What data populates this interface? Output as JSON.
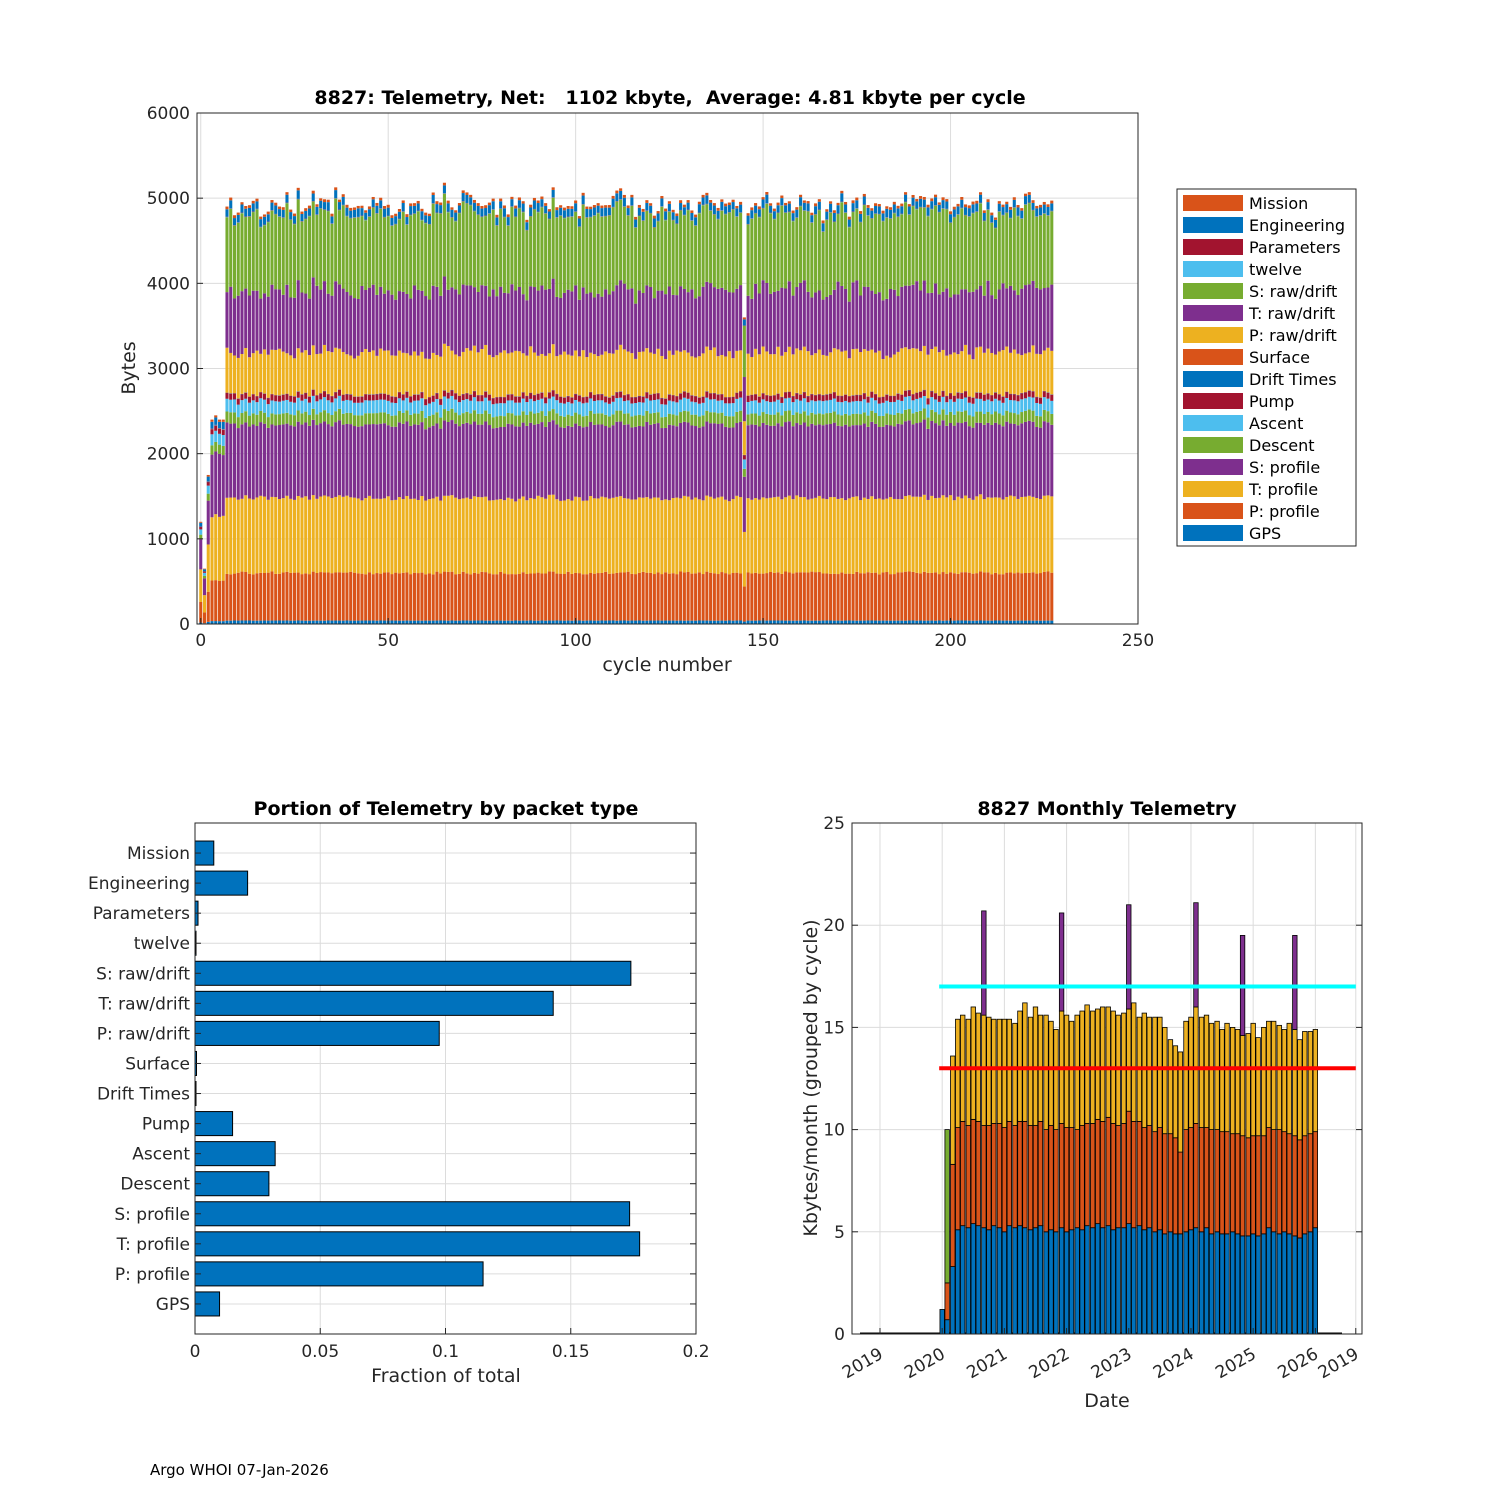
{
  "colors": {
    "blue": "#0072BD",
    "orange": "#D95319",
    "yellow": "#EDB120",
    "purple": "#7E2F8E",
    "green": "#77AC30",
    "lightblue": "#4DBEEE",
    "darkred": "#A2142F",
    "cyan": "#00FFFF",
    "red": "#FF0000"
  },
  "footer": "Argo WHOI 07-Jan-2026",
  "chart_data": [
    {
      "id": "telemetry-by-cycle",
      "type": "bar",
      "stacked": true,
      "title": "8827: Telemetry, Net:   1102 kbyte,  Average: 4.81 kbyte per cycle",
      "xlabel": "cycle number",
      "ylabel": "Bytes",
      "xlim": [
        -1,
        250
      ],
      "ylim": [
        0,
        6000
      ],
      "xticks": [
        "0",
        "50",
        "100",
        "150",
        "200",
        "250"
      ],
      "yticks": [
        "0",
        "1000",
        "2000",
        "3000",
        "4000",
        "5000",
        "6000"
      ],
      "grid": true,
      "legend_position": "right",
      "series_order_bottom_to_top": [
        "GPS",
        "P: profile",
        "T: profile",
        "S: profile",
        "Descent",
        "Ascent",
        "Pump",
        "Drift Times",
        "Surface",
        "P: raw/drift",
        "T: raw/drift",
        "S: raw/drift",
        "twelve",
        "Parameters",
        "Engineering",
        "Mission"
      ],
      "legend": [
        {
          "label": "Mission",
          "color": "#D95319"
        },
        {
          "label": "Engineering",
          "color": "#0072BD"
        },
        {
          "label": "Parameters",
          "color": "#A2142F"
        },
        {
          "label": "twelve",
          "color": "#4DBEEE"
        },
        {
          "label": "S: raw/drift",
          "color": "#77AC30"
        },
        {
          "label": "T: raw/drift",
          "color": "#7E2F8E"
        },
        {
          "label": "P: raw/drift",
          "color": "#EDB120"
        },
        {
          "label": "Surface",
          "color": "#D95319"
        },
        {
          "label": "Drift Times",
          "color": "#0072BD"
        },
        {
          "label": "Pump",
          "color": "#A2142F"
        },
        {
          "label": "Ascent",
          "color": "#4DBEEE"
        },
        {
          "label": "Descent",
          "color": "#77AC30"
        },
        {
          "label": "S: profile",
          "color": "#7E2F8E"
        },
        {
          "label": "T: profile",
          "color": "#EDB120"
        },
        {
          "label": "P: profile",
          "color": "#D95319"
        },
        {
          "label": "GPS",
          "color": "#0072BD"
        }
      ],
      "cycles": {
        "first": 0,
        "last": 227,
        "typical_total_bytes": 4950,
        "max_total_bytes": 5400
      },
      "typical_stack_bytes": {
        "GPS": 40,
        "P: profile": 560,
        "T: profile": 880,
        "S: profile": 860,
        "Descent": 130,
        "Ascent": 150,
        "Pump": 70,
        "Drift Times": 2,
        "Surface": 3,
        "P: raw/drift": 490,
        "T: raw/drift": 720,
        "S: raw/drift": 880,
        "twelve": 2,
        "Parameters": 4,
        "Engineering": 90,
        "Mission": 30
      },
      "early_cycle_totals": [
        {
          "cycle": 0,
          "total": 1200
        },
        {
          "cycle": 1,
          "total": 650
        },
        {
          "cycle": 2,
          "total": 1750
        },
        {
          "cycle": 3,
          "total": 2400
        },
        {
          "cycle": 4,
          "total": 2450
        },
        {
          "cycle": 5,
          "total": 2400
        },
        {
          "cycle": 6,
          "total": 2400
        }
      ],
      "anomaly": {
        "cycle": 145,
        "total": 3600
      }
    },
    {
      "id": "portion-by-packet-type",
      "type": "bar",
      "orientation": "horizontal",
      "title": "Portion of Telemetry by packet type",
      "xlabel": "Fraction of total",
      "ylabel": "",
      "xlim": [
        0,
        0.2
      ],
      "xticks": [
        "0",
        "0.05",
        "0.1",
        "0.15",
        "0.2"
      ],
      "grid": true,
      "categories": [
        "Mission",
        "Engineering",
        "Parameters",
        "twelve",
        "S: raw/drift",
        "T: raw/drift",
        "P: raw/drift",
        "Surface",
        "Drift Times",
        "Pump",
        "Ascent",
        "Descent",
        "S: profile",
        "T: profile",
        "P: profile",
        "GPS"
      ],
      "values": [
        0.0075,
        0.021,
        0.0012,
        0.0004,
        0.174,
        0.143,
        0.0975,
        0.0006,
        0.0003,
        0.015,
        0.032,
        0.0295,
        0.1735,
        0.1775,
        0.115,
        0.0098
      ],
      "bar_color": "#0072BD"
    },
    {
      "id": "monthly-telemetry",
      "type": "bar",
      "stacked": true,
      "title": "8827 Monthly Telemetry",
      "xlabel": "Date",
      "ylabel": "Kbytes/month (grouped by cycle)",
      "ylim": [
        0,
        25
      ],
      "yticks": [
        "0",
        "5",
        "10",
        "15",
        "20",
        "25"
      ],
      "xticks": [
        "2019",
        "2020",
        "2021",
        "2022",
        "2023",
        "2024",
        "2025",
        "2026",
        "2019"
      ],
      "xlim": [
        2018.55,
        2026.75
      ],
      "grid": true,
      "layers_bottom_to_top": [
        "cycle 1 (blue)",
        "cycle 2 (orange)",
        "cycle 3 (yellow)",
        "extra (green/purple)"
      ],
      "months": [
        {
          "t": 2020.0,
          "layers": [
            1.2,
            0,
            0,
            0
          ]
        },
        {
          "t": 2020.08,
          "layers": [
            0.7,
            1.8,
            0,
            7.5
          ]
        },
        {
          "t": 2020.17,
          "layers": [
            3.3,
            5.0,
            5.3,
            0
          ]
        },
        {
          "t": 2020.25,
          "layers": [
            5.1,
            5.0,
            5.3,
            0
          ]
        },
        {
          "t": 2020.33,
          "layers": [
            5.3,
            5.1,
            5.2,
            0
          ]
        },
        {
          "t": 2020.42,
          "layers": [
            5.2,
            5.0,
            5.2,
            0
          ]
        },
        {
          "t": 2020.5,
          "layers": [
            5.4,
            5.1,
            5.5,
            0
          ]
        },
        {
          "t": 2020.58,
          "layers": [
            5.3,
            5.1,
            5.3,
            0
          ]
        },
        {
          "t": 2020.67,
          "layers": [
            5.2,
            5.0,
            5.4,
            5.1
          ]
        },
        {
          "t": 2020.75,
          "layers": [
            5.1,
            5.1,
            5.3,
            0
          ]
        },
        {
          "t": 2020.83,
          "layers": [
            5.3,
            5.0,
            5.1,
            0
          ]
        },
        {
          "t": 2020.92,
          "layers": [
            5.2,
            5.1,
            5.1,
            0
          ]
        },
        {
          "t": 2021.0,
          "layers": [
            5.0,
            5.1,
            5.3,
            0
          ]
        },
        {
          "t": 2021.08,
          "layers": [
            5.3,
            5.1,
            5.0,
            0
          ]
        },
        {
          "t": 2021.17,
          "layers": [
            5.2,
            5.0,
            5.0,
            0
          ]
        },
        {
          "t": 2021.25,
          "layers": [
            5.3,
            5.1,
            5.4,
            0
          ]
        },
        {
          "t": 2021.33,
          "layers": [
            5.2,
            5.2,
            5.8,
            0
          ]
        },
        {
          "t": 2021.42,
          "layers": [
            5.1,
            5.1,
            5.3,
            0
          ]
        },
        {
          "t": 2021.5,
          "layers": [
            5.2,
            5.0,
            5.8,
            0
          ]
        },
        {
          "t": 2021.58,
          "layers": [
            5.3,
            5.1,
            5.2,
            0
          ]
        },
        {
          "t": 2021.67,
          "layers": [
            5.0,
            5.0,
            5.6,
            0
          ]
        },
        {
          "t": 2021.75,
          "layers": [
            5.1,
            5.1,
            5.1,
            0
          ]
        },
        {
          "t": 2021.83,
          "layers": [
            5.0,
            5.0,
            4.9,
            0
          ]
        },
        {
          "t": 2021.92,
          "layers": [
            5.2,
            5.1,
            5.5,
            4.8
          ]
        },
        {
          "t": 2022.0,
          "layers": [
            5.0,
            5.1,
            5.5,
            0
          ]
        },
        {
          "t": 2022.08,
          "layers": [
            5.1,
            5.0,
            5.2,
            0
          ]
        },
        {
          "t": 2022.17,
          "layers": [
            5.2,
            4.8,
            5.6,
            0
          ]
        },
        {
          "t": 2022.25,
          "layers": [
            5.1,
            5.1,
            5.6,
            0
          ]
        },
        {
          "t": 2022.33,
          "layers": [
            5.3,
            5.0,
            5.8,
            0
          ]
        },
        {
          "t": 2022.42,
          "layers": [
            5.2,
            5.1,
            5.5,
            0
          ]
        },
        {
          "t": 2022.5,
          "layers": [
            5.4,
            5.1,
            5.4,
            0
          ]
        },
        {
          "t": 2022.58,
          "layers": [
            5.2,
            5.2,
            5.6,
            0
          ]
        },
        {
          "t": 2022.67,
          "layers": [
            5.3,
            5.3,
            5.4,
            0
          ]
        },
        {
          "t": 2022.75,
          "layers": [
            5.1,
            5.2,
            5.5,
            0
          ]
        },
        {
          "t": 2022.83,
          "layers": [
            5.2,
            5.0,
            5.4,
            0
          ]
        },
        {
          "t": 2022.92,
          "layers": [
            5.2,
            5.1,
            5.4,
            0
          ]
        },
        {
          "t": 2023.0,
          "layers": [
            5.4,
            5.5,
            5.0,
            5.1
          ]
        },
        {
          "t": 2023.08,
          "layers": [
            5.2,
            5.2,
            5.8,
            0
          ]
        },
        {
          "t": 2023.17,
          "layers": [
            5.3,
            5.1,
            5.1,
            0
          ]
        },
        {
          "t": 2023.25,
          "layers": [
            5.1,
            5.0,
            5.6,
            0
          ]
        },
        {
          "t": 2023.33,
          "layers": [
            5.2,
            5.0,
            5.3,
            0
          ]
        },
        {
          "t": 2023.42,
          "layers": [
            5.0,
            4.9,
            5.6,
            0
          ]
        },
        {
          "t": 2023.5,
          "layers": [
            5.1,
            5.0,
            5.4,
            0
          ]
        },
        {
          "t": 2023.58,
          "layers": [
            4.9,
            4.9,
            5.2,
            0
          ]
        },
        {
          "t": 2023.67,
          "layers": [
            5.0,
            4.8,
            4.6,
            0
          ]
        },
        {
          "t": 2023.75,
          "layers": [
            4.9,
            4.7,
            4.5,
            0
          ]
        },
        {
          "t": 2023.83,
          "layers": [
            4.9,
            4.0,
            4.9,
            0
          ]
        },
        {
          "t": 2023.92,
          "layers": [
            5.0,
            5.0,
            5.3,
            0
          ]
        },
        {
          "t": 2024.0,
          "layers": [
            5.1,
            5.0,
            5.4,
            0
          ]
        },
        {
          "t": 2024.08,
          "layers": [
            5.2,
            5.1,
            5.7,
            5.1
          ]
        },
        {
          "t": 2024.17,
          "layers": [
            5.0,
            5.1,
            5.4,
            0
          ]
        },
        {
          "t": 2024.25,
          "layers": [
            5.2,
            4.9,
            5.5,
            0
          ]
        },
        {
          "t": 2024.33,
          "layers": [
            4.9,
            5.1,
            5.2,
            0
          ]
        },
        {
          "t": 2024.42,
          "layers": [
            5.0,
            5.0,
            5.3,
            0
          ]
        },
        {
          "t": 2024.5,
          "layers": [
            4.9,
            5.0,
            5.0,
            0
          ]
        },
        {
          "t": 2024.58,
          "layers": [
            4.9,
            5.0,
            5.3,
            0
          ]
        },
        {
          "t": 2024.67,
          "layers": [
            5.0,
            4.8,
            5.2,
            0
          ]
        },
        {
          "t": 2024.75,
          "layers": [
            4.9,
            4.9,
            5.1,
            0
          ]
        },
        {
          "t": 2024.83,
          "layers": [
            4.8,
            4.9,
            4.9,
            4.9
          ]
        },
        {
          "t": 2024.92,
          "layers": [
            4.8,
            4.8,
            5.1,
            0
          ]
        },
        {
          "t": 2025.0,
          "layers": [
            4.9,
            4.8,
            5.5,
            0
          ]
        },
        {
          "t": 2025.08,
          "layers": [
            4.8,
            4.9,
            4.8,
            0
          ]
        },
        {
          "t": 2025.17,
          "layers": [
            4.9,
            4.8,
            5.3,
            0
          ]
        },
        {
          "t": 2025.25,
          "layers": [
            5.2,
            4.9,
            5.2,
            0
          ]
        },
        {
          "t": 2025.33,
          "layers": [
            5.0,
            5.0,
            5.3,
            0
          ]
        },
        {
          "t": 2025.42,
          "layers": [
            4.9,
            5.1,
            5.1,
            0
          ]
        },
        {
          "t": 2025.5,
          "layers": [
            5.0,
            4.9,
            5.0,
            0
          ]
        },
        {
          "t": 2025.58,
          "layers": [
            4.9,
            4.9,
            5.4,
            0
          ]
        },
        {
          "t": 2025.67,
          "layers": [
            4.8,
            4.9,
            5.2,
            4.6
          ]
        },
        {
          "t": 2025.75,
          "layers": [
            4.7,
            4.8,
            4.9,
            0
          ]
        },
        {
          "t": 2025.83,
          "layers": [
            4.9,
            4.8,
            5.1,
            0
          ]
        },
        {
          "t": 2025.92,
          "layers": [
            5.0,
            4.8,
            5.0,
            0
          ]
        },
        {
          "t": 2026.0,
          "layers": [
            5.2,
            4.7,
            5.0,
            0
          ]
        }
      ],
      "reference_lines": [
        {
          "y": 17,
          "color": "#00FFFF"
        },
        {
          "y": 13,
          "color": "#FF0000"
        }
      ]
    }
  ]
}
